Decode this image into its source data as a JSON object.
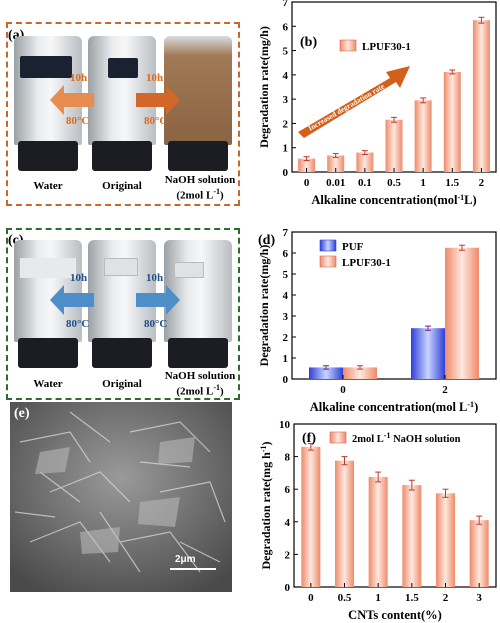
{
  "panel_a": {
    "label": "(a)",
    "vial_labels": [
      "Water",
      "Original",
      "NaOH solution",
      "(2mol L"
    ],
    "sup": "-1",
    "close": ")",
    "arrow_left_time": "10h",
    "arrow_left_temp": "80°C",
    "arrow_right_time": "10h",
    "arrow_right_temp": "80°C",
    "color": "#c9672a"
  },
  "panel_c": {
    "label": "(c)",
    "vial_labels": [
      "Water",
      "Original",
      "NaOH solution",
      "(2mol L"
    ],
    "sup": "-1",
    "close": ")",
    "arrow_left_time": "10h",
    "arrow_left_temp": "80°C",
    "arrow_right_time": "10h",
    "arrow_right_temp": "80°C",
    "color": "#2e6b2f"
  },
  "panel_e": {
    "label": "(e)",
    "scale": "2μm"
  },
  "chart_data": [
    {
      "id": "b",
      "type": "bar",
      "label": "(b)",
      "categories": [
        "0",
        "0.01",
        "0.1",
        "0.5",
        "1",
        "1.5",
        "2"
      ],
      "series": [
        {
          "name": "LPUF30-1",
          "values": [
            0.55,
            0.68,
            0.8,
            2.15,
            2.95,
            4.12,
            6.25
          ],
          "errors": [
            0.08,
            0.08,
            0.08,
            0.1,
            0.1,
            0.08,
            0.12
          ]
        }
      ],
      "xlabel": "Alkaline concentration(mol",
      "xlabel_sup": "-1",
      "xlabel_tail": "L)",
      "ylabel": "Degradation rate(mg/h)",
      "ylim": [
        0,
        7
      ],
      "yticks": [
        "0",
        "1",
        "2",
        "3",
        "4",
        "5",
        "6",
        "7"
      ],
      "annotation": "Increased degradation rate"
    },
    {
      "id": "d",
      "type": "bar",
      "label": "(d)",
      "categories": [
        "0",
        "2"
      ],
      "series": [
        {
          "name": "PUF",
          "values": [
            0.55,
            2.42
          ],
          "errors": [
            0.08,
            0.1
          ]
        },
        {
          "name": "LPUF30-1",
          "values": [
            0.55,
            6.25
          ],
          "errors": [
            0.08,
            0.12
          ]
        }
      ],
      "xlabel": "Alkaline concentration(mol L",
      "xlabel_sup": "-1",
      "xlabel_tail": ")",
      "ylabel": "Degradation rate(mg/h)",
      "ylim": [
        0,
        7
      ],
      "yticks": [
        "0",
        "1",
        "2",
        "3",
        "4",
        "5",
        "6",
        "7"
      ]
    },
    {
      "id": "f",
      "type": "bar",
      "label": "(f)",
      "categories": [
        "0",
        "0.5",
        "1",
        "1.5",
        "2",
        "3"
      ],
      "series": [
        {
          "name": "2mol L",
          "name_sup": "-1",
          "name_tail": " NaOH solution",
          "values": [
            8.6,
            7.75,
            6.75,
            6.25,
            5.75,
            4.1
          ],
          "errors": [
            0.2,
            0.25,
            0.3,
            0.3,
            0.25,
            0.25
          ]
        }
      ],
      "xlabel": "CNTs content(%)",
      "ylabel": "Degradation rate(mg h",
      "ylabel_sup": "-1",
      "ylabel_tail": ")",
      "ylim": [
        0,
        10
      ],
      "yticks": [
        "0",
        "2",
        "4",
        "6",
        "8",
        "10"
      ]
    }
  ]
}
